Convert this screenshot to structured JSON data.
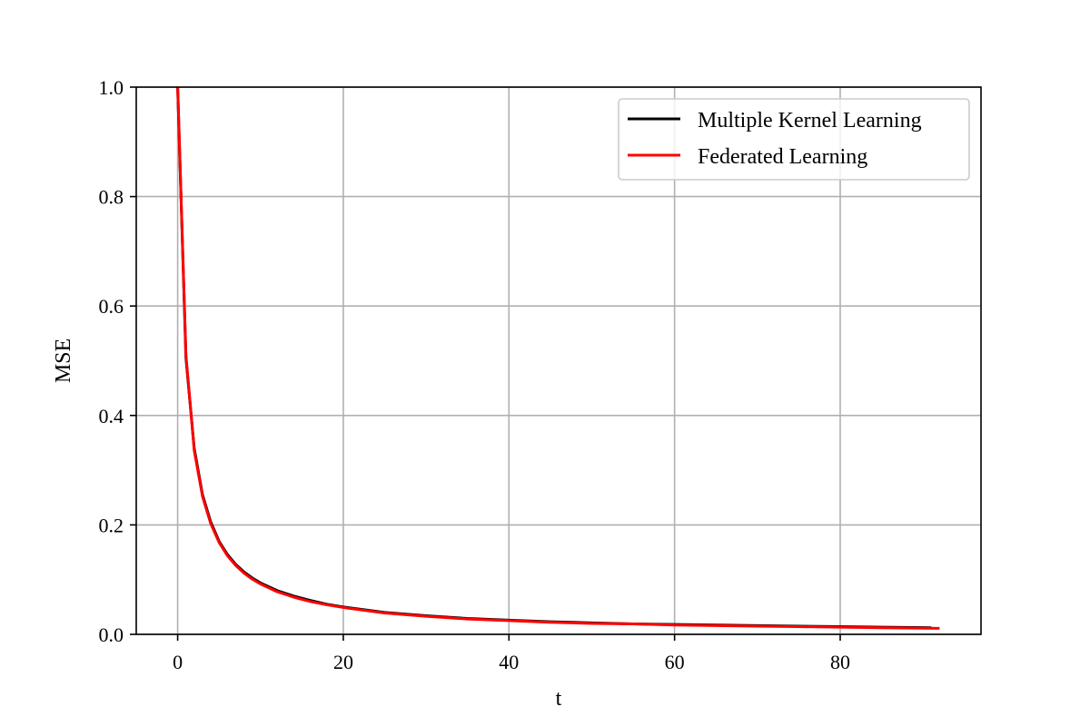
{
  "chart_data": {
    "type": "line",
    "title": "",
    "xlabel": "t",
    "ylabel": "MSE",
    "xlim": [
      -5,
      97
    ],
    "ylim": [
      0.0,
      1.0
    ],
    "xticks": [
      "0",
      "20",
      "40",
      "60",
      "80"
    ],
    "xtick_values": [
      0,
      20,
      40,
      60,
      80
    ],
    "yticks": [
      "0.0",
      "0.2",
      "0.4",
      "0.6",
      "0.8",
      "1.0"
    ],
    "ytick_values": [
      0.0,
      0.2,
      0.4,
      0.6,
      0.8,
      1.0
    ],
    "grid": true,
    "legend_position": "top-right",
    "series": [
      {
        "name": "Multiple Kernel Learning",
        "color": "#000000",
        "x": [
          0,
          1,
          2,
          3,
          4,
          5,
          6,
          7,
          8,
          9,
          10,
          12,
          14,
          16,
          18,
          20,
          25,
          30,
          35,
          40,
          45,
          50,
          55,
          60,
          65,
          70,
          75,
          80,
          85,
          91
        ],
        "y": [
          1.0,
          0.505,
          0.34,
          0.255,
          0.205,
          0.17,
          0.146,
          0.128,
          0.114,
          0.103,
          0.094,
          0.08,
          0.07,
          0.062,
          0.055,
          0.05,
          0.04,
          0.034,
          0.029,
          0.026,
          0.023,
          0.021,
          0.019,
          0.018,
          0.017,
          0.016,
          0.015,
          0.014,
          0.013,
          0.012
        ]
      },
      {
        "name": "Federated Learning",
        "color": "#ff0000",
        "x": [
          0,
          1,
          2,
          3,
          4,
          5,
          6,
          7,
          8,
          9,
          10,
          12,
          14,
          16,
          18,
          20,
          25,
          30,
          35,
          40,
          45,
          50,
          55,
          60,
          65,
          70,
          75,
          80,
          85,
          92
        ],
        "y": [
          1.0,
          0.51,
          0.336,
          0.252,
          0.202,
          0.168,
          0.144,
          0.126,
          0.112,
          0.101,
          0.092,
          0.078,
          0.068,
          0.06,
          0.054,
          0.049,
          0.039,
          0.033,
          0.028,
          0.025,
          0.022,
          0.02,
          0.019,
          0.017,
          0.016,
          0.015,
          0.014,
          0.013,
          0.012,
          0.011
        ]
      }
    ]
  }
}
